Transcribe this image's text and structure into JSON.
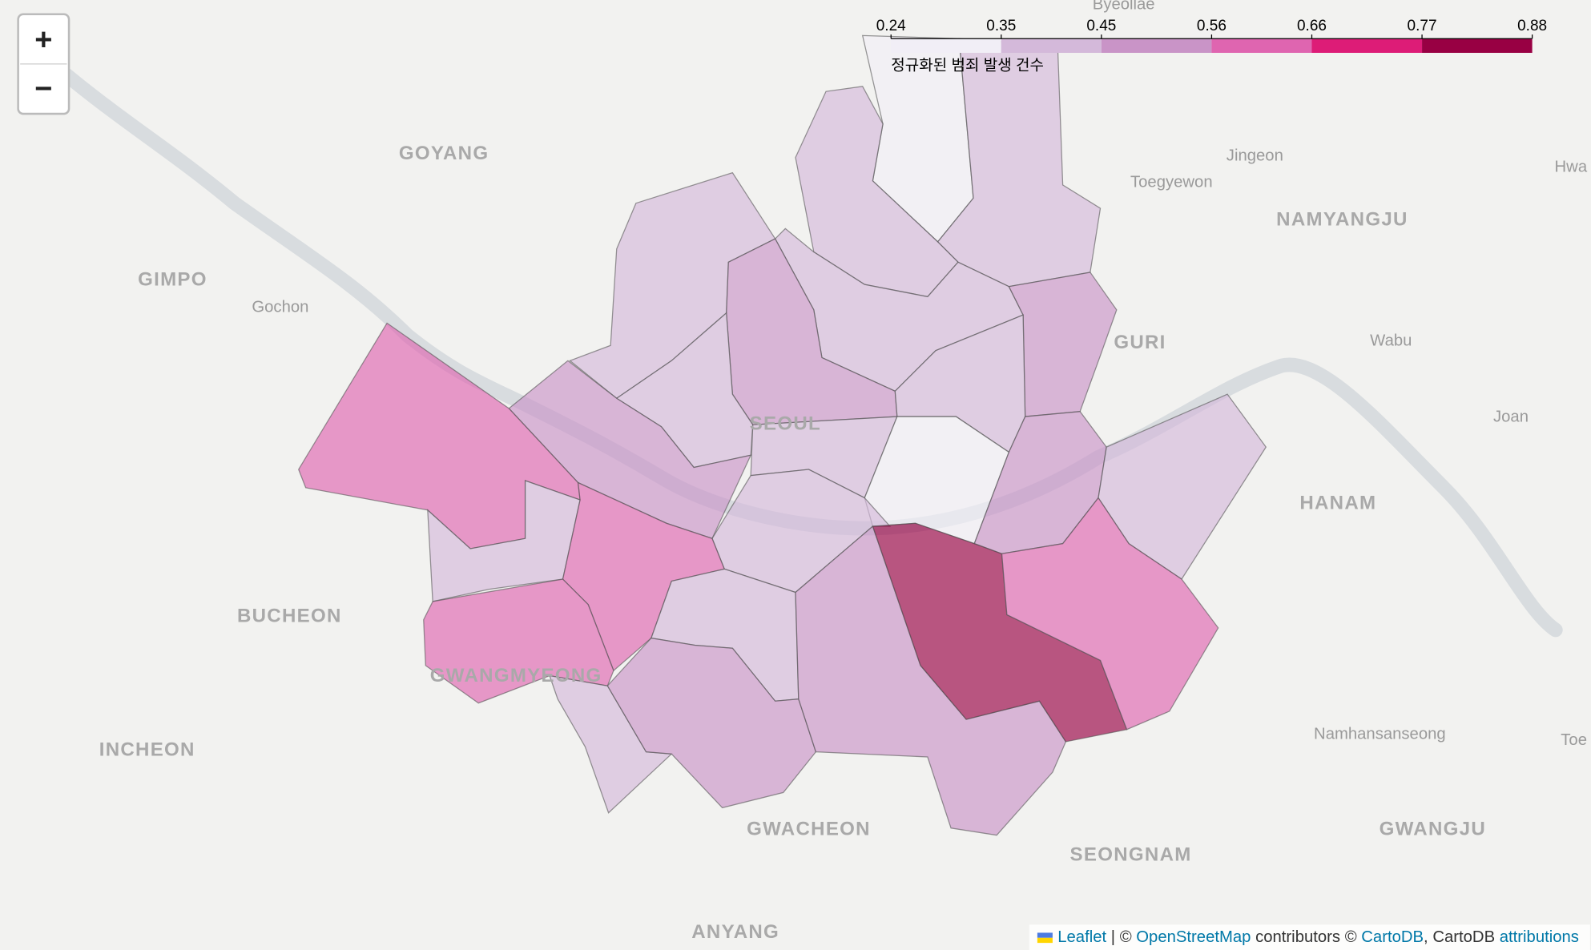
{
  "zoom_control": {
    "zoom_in": "+",
    "zoom_out": "−"
  },
  "legend": {
    "caption": "정규화된 범죄 발생 건수",
    "ticks": [
      0.24,
      0.35,
      0.45,
      0.56,
      0.66,
      0.77,
      0.88
    ],
    "colors": [
      "#f1eef6",
      "#d4b9da",
      "#c994c7",
      "#df65b0",
      "#dd1c77",
      "#980043"
    ]
  },
  "regions": {
    "values": [
      0.27,
      0.4,
      0.4,
      0.4,
      0.39,
      0.47,
      0.47,
      0.4,
      0.38,
      0.46,
      0.39,
      0.27,
      0.48,
      0.38,
      0.4,
      0.58,
      0.4,
      0.65,
      0.58,
      0.4,
      0.38,
      0.46,
      0.46,
      0.84,
      0.6
    ]
  },
  "place_labels": [
    "Byeollae",
    "GOYANG",
    "GIMPO",
    "Gochon",
    "Jingeon",
    "Toegyewon",
    "NAMYANGJU",
    "Hwa",
    "GURI",
    "Wabu",
    "Joan",
    "HANAM",
    "SEOUL",
    "BUCHEON",
    "GWANGMYEONG",
    "INCHEON",
    "Namhansanseong",
    "Toe",
    "GWACHEON",
    "SEONGNAM",
    "GWANGJU",
    "ANYANG"
  ],
  "attribution": {
    "leaflet": "Leaflet",
    "sep1": " | © ",
    "osm": "OpenStreetMap",
    "mid": " contributors © ",
    "cartodb": "CartoDB",
    "sep2": ", CartoDB ",
    "attributions": "attributions"
  }
}
